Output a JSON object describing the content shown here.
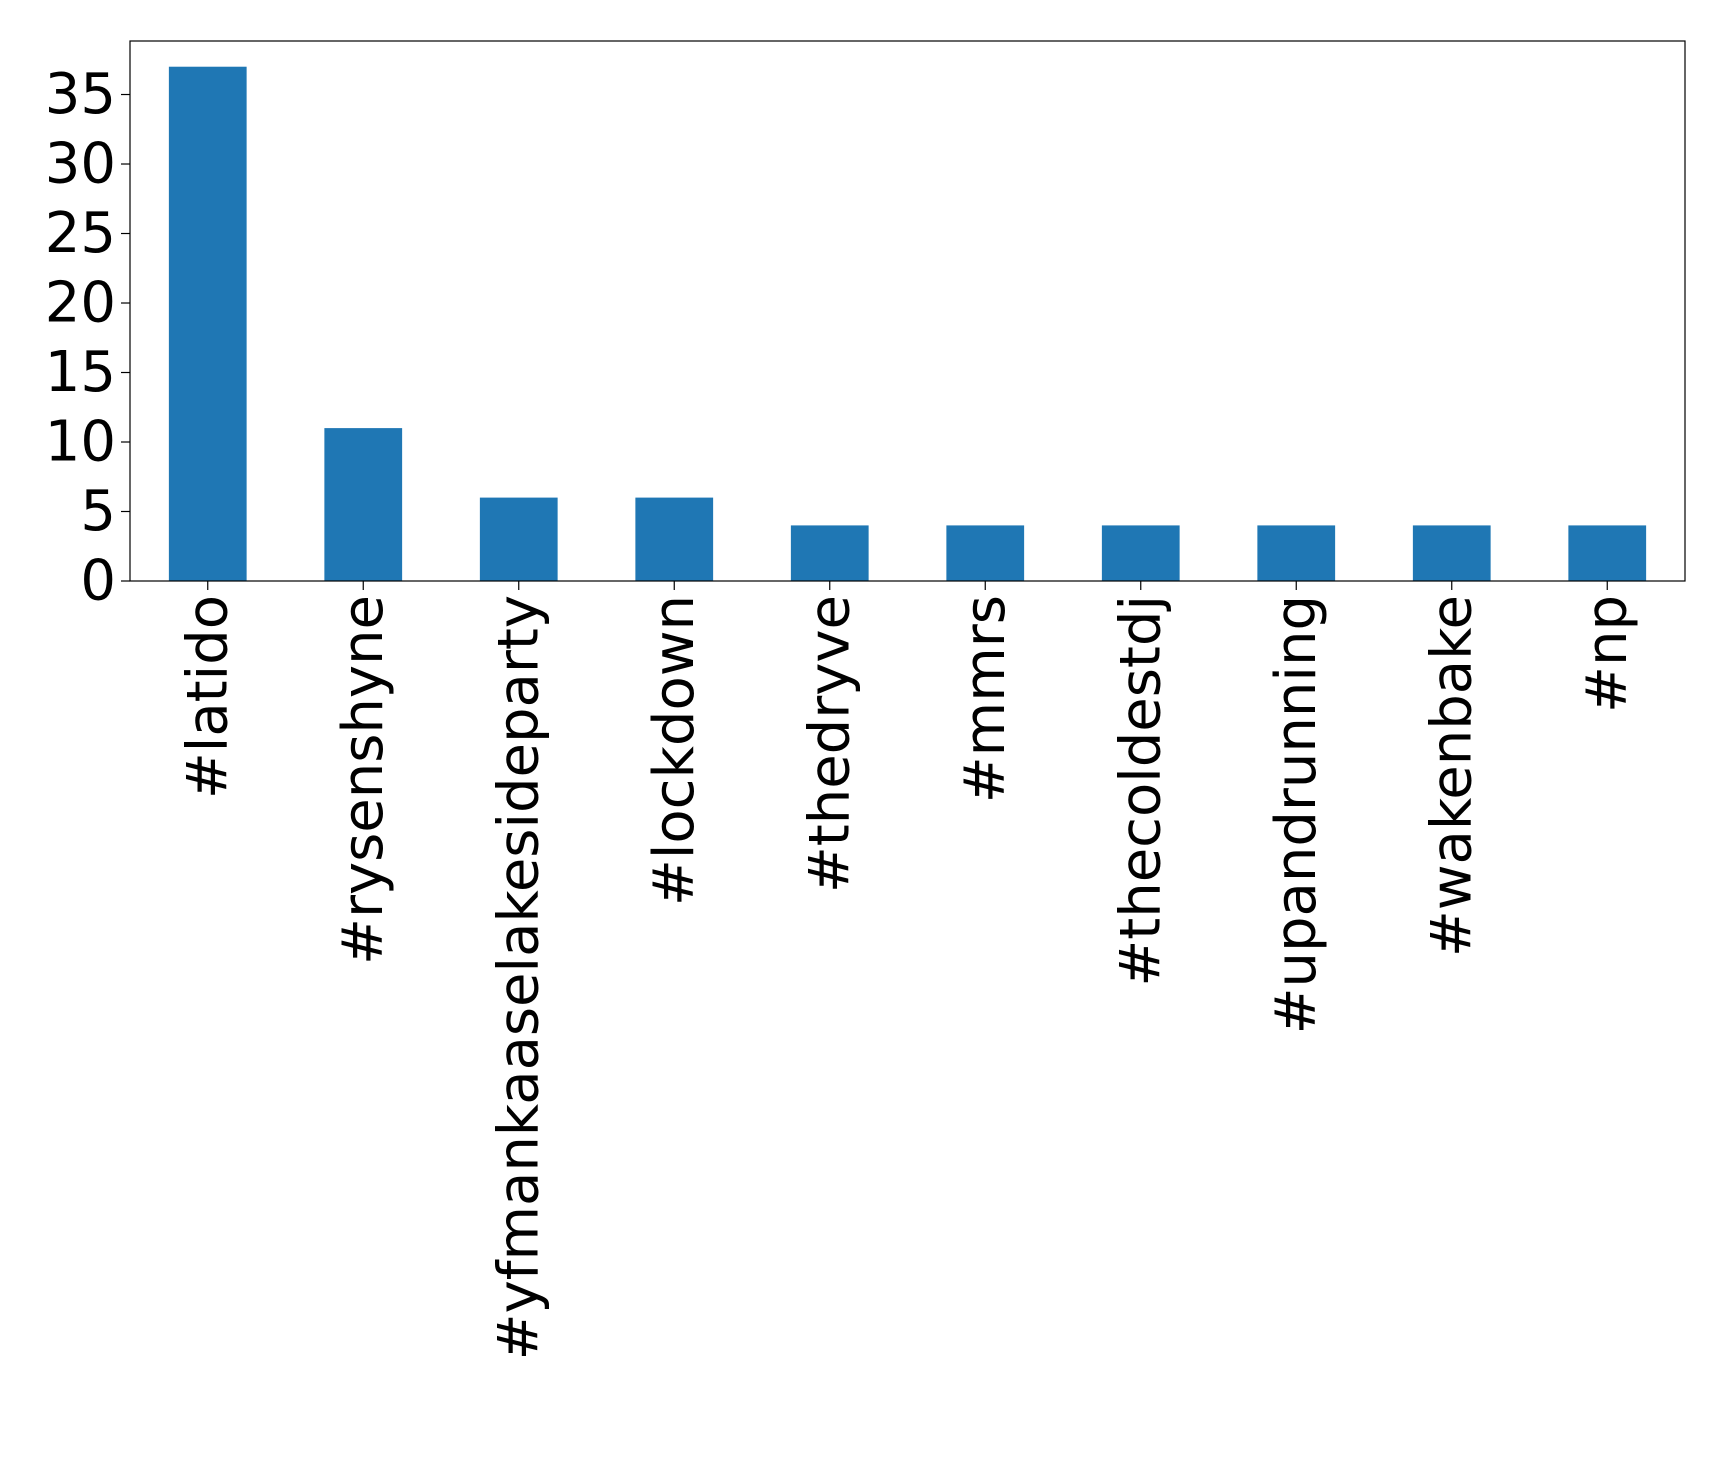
{
  "chart_data": {
    "type": "bar",
    "categories": [
      "#latido",
      "#rysenshyne",
      "#yfmankaaselakesideparty",
      "#lockdown",
      "#thedryve",
      "#mmrs",
      "#thecoldestdj",
      "#upandrunning",
      "#wakenbake",
      "#np"
    ],
    "values": [
      37,
      11,
      6,
      6,
      4,
      4,
      4,
      4,
      4,
      4
    ],
    "color": "#1f77b4",
    "ylim": [
      0,
      38.85
    ],
    "yticks": [
      0,
      5,
      10,
      15,
      20,
      25,
      30,
      35
    ],
    "grid": false
  }
}
